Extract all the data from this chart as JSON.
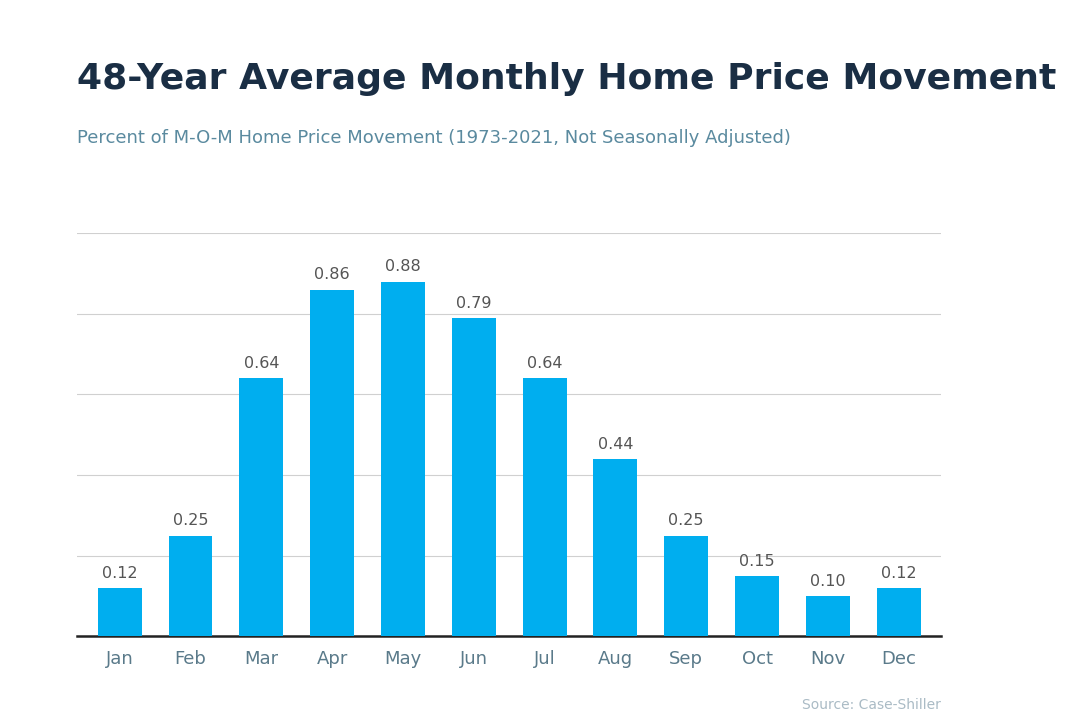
{
  "title": "48-Year Average Monthly Home Price Movement",
  "subtitle": "Percent of M-O-M Home Price Movement (1973-2021, Not Seasonally Adjusted)",
  "source": "Source: Case-Shiller",
  "categories": [
    "Jan",
    "Feb",
    "Mar",
    "Apr",
    "May",
    "Jun",
    "Jul",
    "Aug",
    "Sep",
    "Oct",
    "Nov",
    "Dec"
  ],
  "values": [
    0.12,
    0.25,
    0.64,
    0.86,
    0.88,
    0.79,
    0.64,
    0.44,
    0.25,
    0.15,
    0.1,
    0.12
  ],
  "bar_color": "#00AEEF",
  "title_color": "#1a2e44",
  "subtitle_color": "#5a8a9f",
  "label_color": "#555555",
  "axis_label_color": "#5a7a8a",
  "source_color": "#aabbc5",
  "background_color": "#ffffff",
  "top_stripe_color": "#29b5e8",
  "ylim": [
    0,
    1.0
  ],
  "ytick_step": 0.2
}
